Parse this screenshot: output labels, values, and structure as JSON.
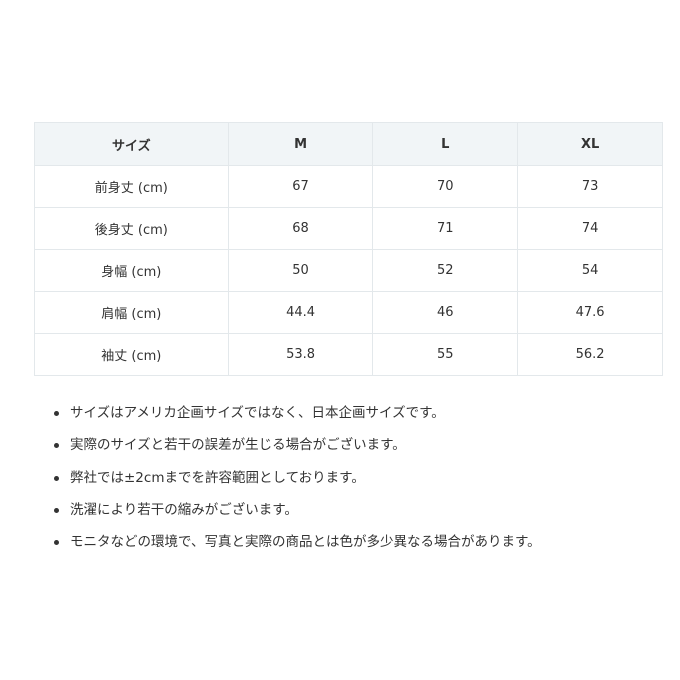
{
  "table": {
    "headers": [
      "サイズ",
      "M",
      "L",
      "XL"
    ],
    "rows": [
      [
        "前身丈 (cm)",
        "67",
        "70",
        "73"
      ],
      [
        "後身丈 (cm)",
        "68",
        "71",
        "74"
      ],
      [
        "身幅 (cm)",
        "50",
        "52",
        "54"
      ],
      [
        "肩幅 (cm)",
        "44.4",
        "46",
        "47.6"
      ],
      [
        "袖丈 (cm)",
        "53.8",
        "55",
        "56.2"
      ]
    ]
  },
  "notes": [
    "サイズはアメリカ企画サイズではなく、日本企画サイズです。",
    "実際のサイズと若干の誤差が生じる場合がございます。",
    "弊社では±2cmまでを許容範囲としております。",
    "洗濯により若干の縮みがございます。",
    "モニタなどの環境で、写真と実際の商品とは色が多少異なる場合があります。"
  ]
}
